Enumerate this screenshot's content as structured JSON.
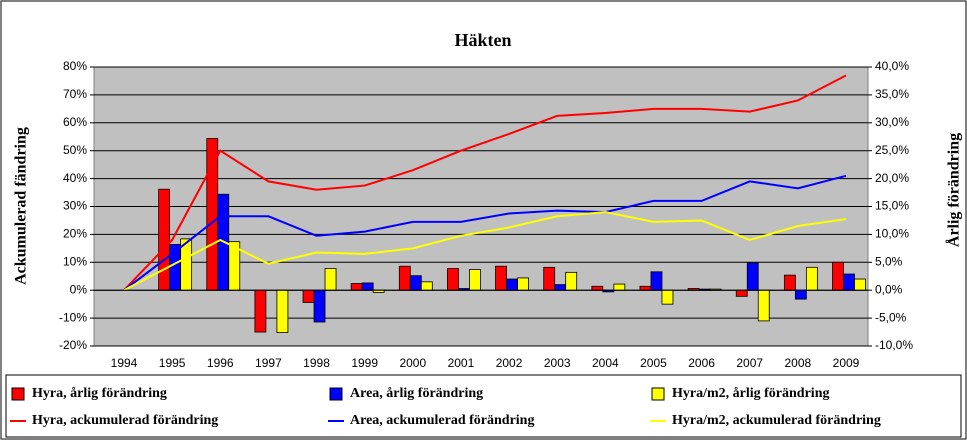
{
  "chart_data": {
    "type": "combo",
    "title": "Häkten",
    "ylabel": "Ackumulerad fändring",
    "y2label": "Årlig förändring",
    "categories": [
      "1994",
      "1995",
      "1996",
      "1997",
      "1998",
      "1999",
      "2000",
      "2001",
      "2002",
      "2003",
      "2004",
      "2005",
      "2006",
      "2007",
      "2008",
      "2009"
    ],
    "ylim": [
      -20,
      80
    ],
    "yticks": [
      {
        "value": -20,
        "label": "-20%"
      },
      {
        "value": -10,
        "label": "-10%"
      },
      {
        "value": 0,
        "label": "0%"
      },
      {
        "value": 10,
        "label": "10%"
      },
      {
        "value": 20,
        "label": "20%"
      },
      {
        "value": 30,
        "label": "30%"
      },
      {
        "value": 40,
        "label": "40%"
      },
      {
        "value": 50,
        "label": "50%"
      },
      {
        "value": 60,
        "label": "60%"
      },
      {
        "value": 70,
        "label": "70%"
      },
      {
        "value": 80,
        "label": "80%"
      }
    ],
    "y2lim": [
      -10,
      40
    ],
    "y2ticks": [
      {
        "value": -10,
        "label": "-10,0%"
      },
      {
        "value": -5,
        "label": "-5,0%"
      },
      {
        "value": 0,
        "label": "0,0%"
      },
      {
        "value": 5,
        "label": "5,0%"
      },
      {
        "value": 10,
        "label": "10,0%"
      },
      {
        "value": 15,
        "label": "15,0%"
      },
      {
        "value": 20,
        "label": "20,0%"
      },
      {
        "value": 25,
        "label": "25,0%"
      },
      {
        "value": 30,
        "label": "30,0%"
      },
      {
        "value": 35,
        "label": "35,0%"
      },
      {
        "value": 40,
        "label": "40,0%"
      }
    ],
    "grid": true,
    "legend": "bottom",
    "series": [
      {
        "name": "Hyra, årlig förändring",
        "type": "bar",
        "axis": "y2",
        "color": "#ff0000",
        "values": [
          0,
          18.1,
          27.2,
          -7.5,
          -2.2,
          1.2,
          4.3,
          3.9,
          4.3,
          4.1,
          0.7,
          0.7,
          0.3,
          -1.1,
          2.7,
          5.0
        ]
      },
      {
        "name": "Area, årlig förändring",
        "type": "bar",
        "axis": "y2",
        "color": "#0000ff",
        "values": [
          0,
          8.2,
          17.2,
          0,
          -5.7,
          1.3,
          2.6,
          0.3,
          2.0,
          1.0,
          -0.3,
          3.3,
          0.2,
          4.9,
          -1.6,
          2.9
        ]
      },
      {
        "name": "Hyra/m2, årlig förändring",
        "type": "bar",
        "axis": "y2",
        "color": "#ffff00",
        "values": [
          0,
          9.2,
          8.7,
          -7.6,
          3.9,
          -0.4,
          1.5,
          3.7,
          2.2,
          3.2,
          1.1,
          -2.5,
          0.2,
          -5.5,
          4.1,
          2.0
        ]
      },
      {
        "name": "Hyra, ackumulerad förändring",
        "type": "line",
        "axis": "y",
        "color": "#ff0000",
        "values": [
          0,
          18,
          50,
          39,
          36,
          37.5,
          43,
          50,
          56,
          62.5,
          63.5,
          65,
          65,
          64,
          68,
          77
        ]
      },
      {
        "name": "Area, ackumulerad förändring",
        "type": "line",
        "axis": "y",
        "color": "#0000ff",
        "values": [
          0,
          13,
          26.5,
          26.5,
          19.5,
          21,
          24.5,
          24.5,
          27.5,
          28.5,
          28,
          32,
          32,
          39,
          36.5,
          41
        ]
      },
      {
        "name": "Hyra/m2, ackumulerad förändring",
        "type": "line",
        "axis": "y",
        "color": "#ffff00",
        "values": [
          0,
          9,
          18,
          9.5,
          13.5,
          13,
          15,
          19.5,
          22.5,
          26.5,
          28,
          24.5,
          25,
          18,
          23,
          25.5
        ]
      }
    ]
  }
}
